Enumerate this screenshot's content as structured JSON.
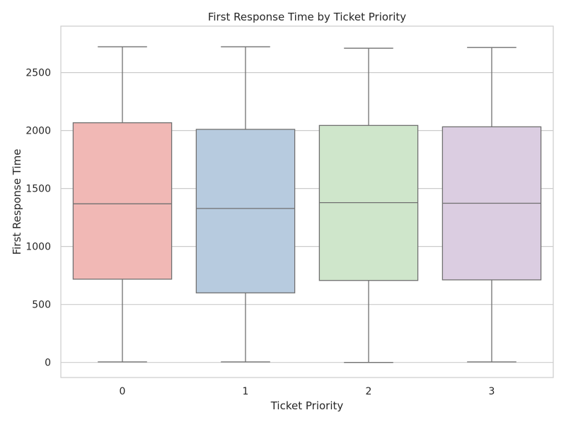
{
  "chart_data": {
    "type": "box",
    "title": "First Response Time by Ticket Priority",
    "xlabel": "Ticket Priority",
    "ylabel": "First Response Time",
    "ylim": [
      -130,
      2900
    ],
    "yticks": [
      0,
      500,
      1000,
      1500,
      2000,
      2500
    ],
    "grid": true,
    "legend": "none",
    "categories": [
      "0",
      "1",
      "2",
      "3"
    ],
    "boxes": [
      {
        "category": "0",
        "min": 5,
        "q1": 718,
        "median": 1368,
        "q3": 2067,
        "max": 2722,
        "color": "#f1b8b5"
      },
      {
        "category": "1",
        "min": 5,
        "q1": 600,
        "median": 1328,
        "q3": 2010,
        "max": 2722,
        "color": "#b7cbdf"
      },
      {
        "category": "2",
        "min": 0,
        "q1": 707,
        "median": 1378,
        "q3": 2044,
        "max": 2710,
        "color": "#cfe6cb"
      },
      {
        "category": "3",
        "min": 5,
        "q1": 712,
        "median": 1373,
        "q3": 2032,
        "max": 2716,
        "color": "#dbcde1"
      }
    ],
    "colors": {
      "grid": "#cccccc",
      "frame": "#cccccc",
      "box_edge": "#707070",
      "whisker": "#707070",
      "median": "#707070"
    }
  }
}
